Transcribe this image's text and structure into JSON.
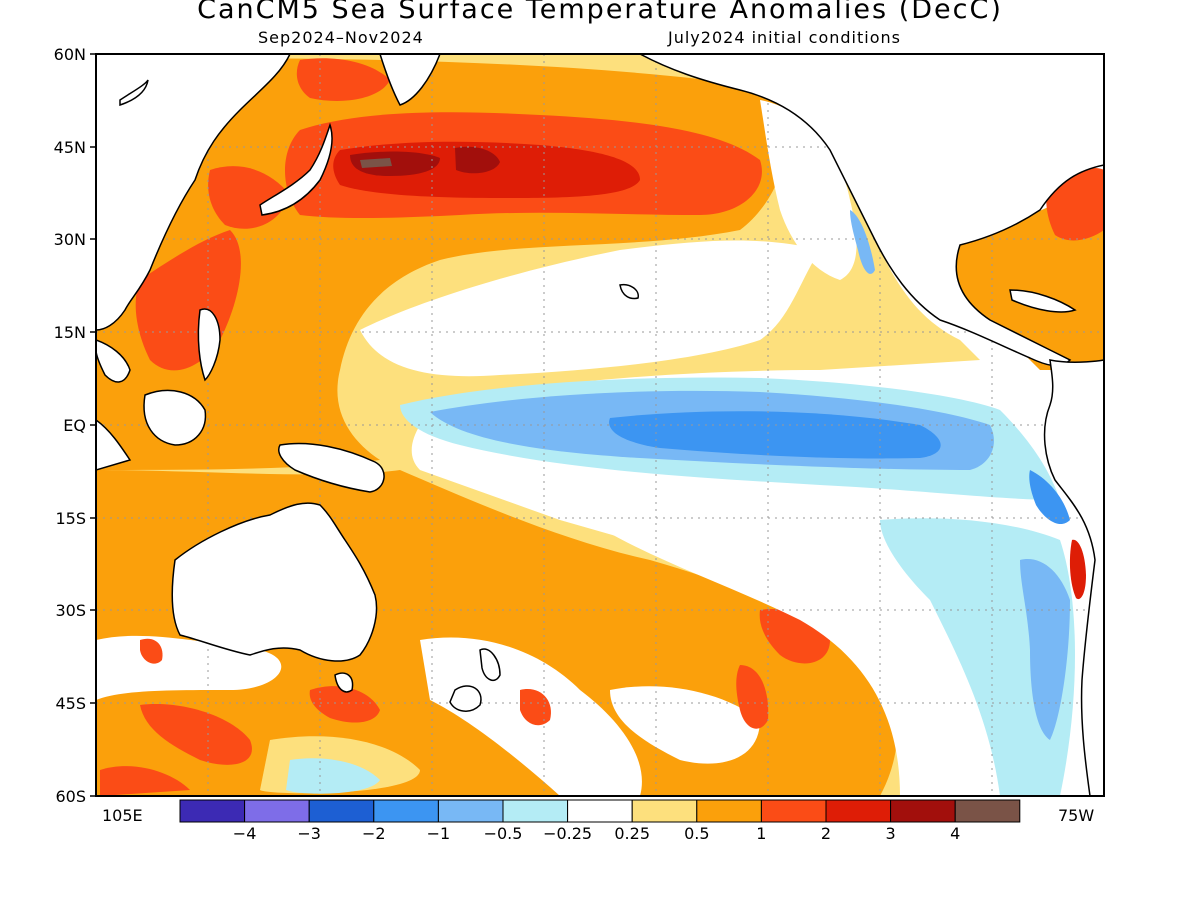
{
  "title": "CanCM5 Sea Surface Temperature Anomalies (DecC)",
  "subtitle_left": "Sep2024–Nov2024",
  "subtitle_right": "July2024 initial conditions",
  "lat_labels": [
    "60N",
    "45N",
    "30N",
    "15N",
    "EQ",
    "15S",
    "30S",
    "45S",
    "60S"
  ],
  "lon_left_label": "105E",
  "lon_right_label": "75W",
  "colorbar": {
    "colors": [
      "#3c2ab4",
      "#7e6de8",
      "#1d5fd3",
      "#3c95f2",
      "#78b8f5",
      "#b4ecf5",
      "#ffffff",
      "#fde07d",
      "#fba00b",
      "#fb4c16",
      "#de1d06",
      "#a20f0c",
      "#7a5347"
    ],
    "labels": [
      "−4",
      "−3",
      "−2",
      "−1",
      "−0.5",
      "−0.25",
      "0.25",
      "0.5",
      "1",
      "2",
      "3",
      "4"
    ]
  },
  "legend_colors": {
    "warm_light": "#fde07d",
    "warm": "#fba00b",
    "warm_strong": "#fb4c16",
    "warm_stronger": "#de1d06",
    "warm_extreme": "#a20f0c",
    "cool_light": "#b4ecf5",
    "cool": "#78b8f5",
    "cool_strong": "#3c95f2",
    "land": "#ffffff",
    "coast": "#000000"
  }
}
